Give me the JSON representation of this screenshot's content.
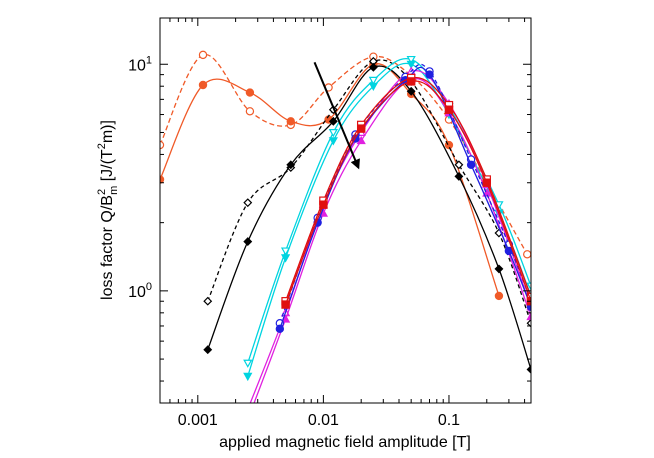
{
  "chart_data": {
    "type": "line",
    "xlabel": "applied magnetic field amplitude [T]",
    "ylabel_main": "loss factor Q/B",
    "ylabel_sup": "2",
    "ylabel_sub": "m",
    "ylabel_unit_pre": " [J/(T",
    "ylabel_unit_sup": "2",
    "ylabel_unit_post": "m)]",
    "x_scale": "log",
    "y_scale": "log",
    "xlim": [
      0.0005,
      0.45
    ],
    "ylim": [
      0.32,
      16
    ],
    "x_ticks": [
      {
        "value": 0.001,
        "label": "0.001"
      },
      {
        "value": 0.01,
        "label": "0.01"
      },
      {
        "value": 0.1,
        "label": "0.1"
      }
    ],
    "y_ticks": [
      {
        "value": 1,
        "label_base": "10",
        "label_exp": "0"
      },
      {
        "value": 10,
        "label_base": "10",
        "label_exp": "1"
      }
    ],
    "legend": "none",
    "grid": false,
    "annotation_arrow": {
      "from": [
        0.0085,
        10.2
      ],
      "to": [
        0.019,
        3.5
      ]
    },
    "series": [
      {
        "color": "#f05a28",
        "dash": "5,3",
        "marker": "open-circle",
        "x": [
          0.0005,
          0.0011,
          0.0026,
          0.0055,
          0.011,
          0.025,
          0.05,
          0.1,
          0.2,
          0.42
        ],
        "y": [
          4.4,
          11.0,
          6.2,
          5.4,
          7.9,
          10.8,
          8.9,
          5.7,
          3.0,
          1.45
        ]
      },
      {
        "color": "#f05a28",
        "dash": "",
        "marker": "filled-circle",
        "x": [
          0.0005,
          0.0011,
          0.0026,
          0.0055,
          0.011,
          0.025,
          0.05,
          0.1,
          0.25
        ],
        "y": [
          3.1,
          8.1,
          7.5,
          5.6,
          5.7,
          10.0,
          7.4,
          4.4,
          0.95
        ]
      },
      {
        "color": "#000000",
        "dash": "4,3",
        "marker": "open-diamond",
        "x": [
          0.0012,
          0.0025,
          0.0055,
          0.012,
          0.025,
          0.05,
          0.12,
          0.25,
          0.45
        ],
        "y": [
          0.9,
          2.45,
          3.5,
          6.3,
          10.3,
          8.4,
          3.6,
          1.8,
          0.72
        ]
      },
      {
        "color": "#000000",
        "dash": "",
        "marker": "filled-diamond",
        "x": [
          0.0012,
          0.0025,
          0.0055,
          0.012,
          0.025,
          0.05,
          0.12,
          0.25,
          0.45
        ],
        "y": [
          0.55,
          1.65,
          3.6,
          5.6,
          9.7,
          7.6,
          3.2,
          1.25,
          0.45
        ]
      },
      {
        "color": "#00d4e0",
        "dash": "",
        "marker": "open-triangle-down",
        "x": [
          0.0025,
          0.005,
          0.012,
          0.025,
          0.05,
          0.1,
          0.25,
          0.45
        ],
        "y": [
          0.48,
          1.5,
          5.0,
          8.5,
          10.5,
          6.5,
          2.4,
          1.05
        ]
      },
      {
        "color": "#00d4e0",
        "dash": "",
        "marker": "filled-triangle-down",
        "x": [
          0.0025,
          0.005,
          0.012,
          0.025,
          0.05,
          0.1,
          0.25,
          0.45
        ],
        "y": [
          0.42,
          1.4,
          4.6,
          8.0,
          10.0,
          6.0,
          2.2,
          0.95
        ]
      },
      {
        "color": "#e020e0",
        "dash": "",
        "marker": "open-triangle-up",
        "x": [
          0.0025,
          0.005,
          0.01,
          0.02,
          0.05,
          0.1,
          0.2,
          0.45
        ],
        "y": [
          0.3,
          0.8,
          2.4,
          5.0,
          9.3,
          6.7,
          2.95,
          0.85
        ]
      },
      {
        "color": "#e020e0",
        "dash": "",
        "marker": "filled-triangle-up",
        "x": [
          0.0025,
          0.005,
          0.01,
          0.02,
          0.05,
          0.1,
          0.2,
          0.45
        ],
        "y": [
          0.27,
          0.75,
          2.2,
          4.6,
          8.6,
          6.1,
          2.7,
          0.77
        ]
      },
      {
        "color": "#2020e0",
        "dash": "4,3",
        "marker": "open-circle",
        "x": [
          0.0045,
          0.009,
          0.018,
          0.045,
          0.07,
          0.15,
          0.3,
          0.45
        ],
        "y": [
          0.72,
          2.1,
          4.9,
          8.8,
          9.3,
          3.8,
          1.6,
          0.9
        ]
      },
      {
        "color": "#2020e0",
        "dash": "",
        "marker": "filled-circle",
        "x": [
          0.0045,
          0.009,
          0.018,
          0.045,
          0.07,
          0.15,
          0.3,
          0.45
        ],
        "y": [
          0.68,
          2.0,
          4.7,
          8.5,
          9.0,
          3.6,
          1.5,
          0.85
        ]
      },
      {
        "color": "#e01010",
        "dash": "",
        "marker": "open-square",
        "x": [
          0.005,
          0.01,
          0.02,
          0.05,
          0.1,
          0.2,
          0.45
        ],
        "y": [
          0.9,
          2.5,
          5.4,
          8.7,
          6.6,
          3.1,
          0.94
        ]
      },
      {
        "color": "#e01010",
        "dash": "",
        "marker": "filled-square",
        "x": [
          0.005,
          0.01,
          0.02,
          0.05,
          0.1,
          0.2,
          0.45
        ],
        "y": [
          0.87,
          2.4,
          5.2,
          8.4,
          6.3,
          3.0,
          0.9
        ]
      }
    ]
  }
}
